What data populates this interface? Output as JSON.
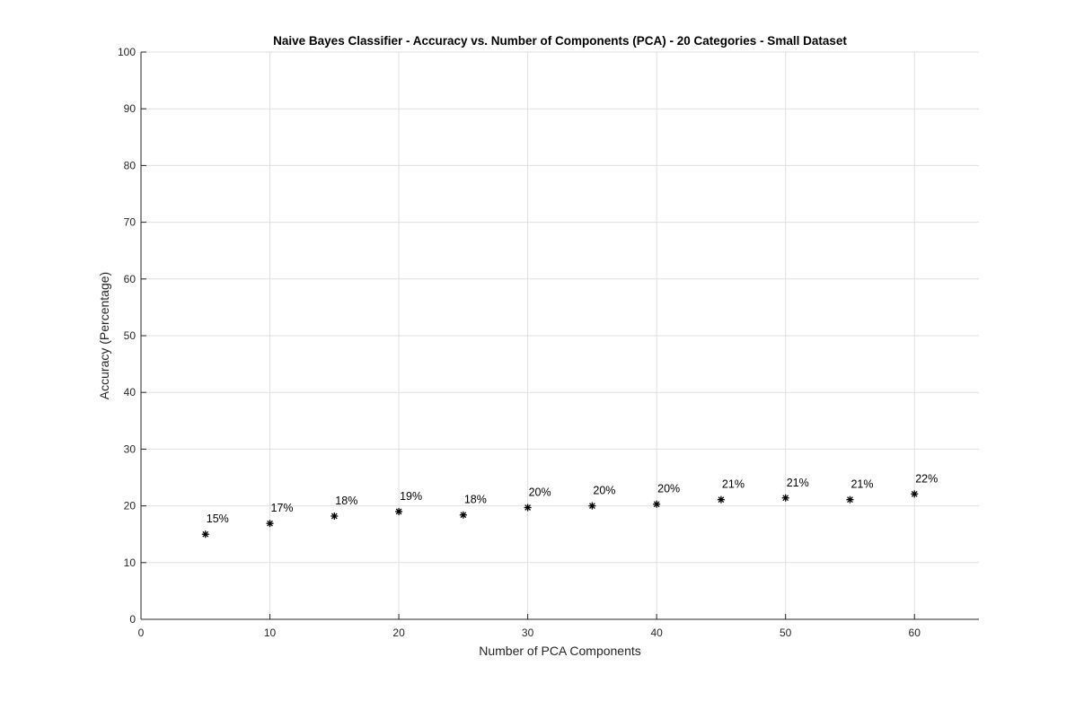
{
  "chart_data": {
    "type": "scatter",
    "title": "Naive Bayes Classifier - Accuracy vs. Number of Components (PCA) - 20 Categories - Small Dataset",
    "xlabel": "Number of PCA Components",
    "ylabel": "Accuracy (Percentage)",
    "xlim": [
      0,
      65
    ],
    "ylim": [
      0,
      100
    ],
    "xticks": [
      0,
      10,
      20,
      30,
      40,
      50,
      60
    ],
    "yticks": [
      0,
      10,
      20,
      30,
      40,
      50,
      60,
      70,
      80,
      90,
      100
    ],
    "grid": true,
    "marker": "asterisk",
    "marker_color": "#000000",
    "series": [
      {
        "x": [
          5,
          10,
          15,
          20,
          25,
          30,
          35,
          40,
          45,
          50,
          55,
          60
        ],
        "y": [
          15.0,
          16.9,
          18.2,
          19.0,
          18.4,
          19.7,
          20.0,
          20.3,
          21.1,
          21.4,
          21.1,
          22.1
        ],
        "labels": [
          "15%",
          "17%",
          "18%",
          "19%",
          "18%",
          "20%",
          "20%",
          "20%",
          "21%",
          "21%",
          "21%",
          "22%"
        ]
      }
    ]
  }
}
